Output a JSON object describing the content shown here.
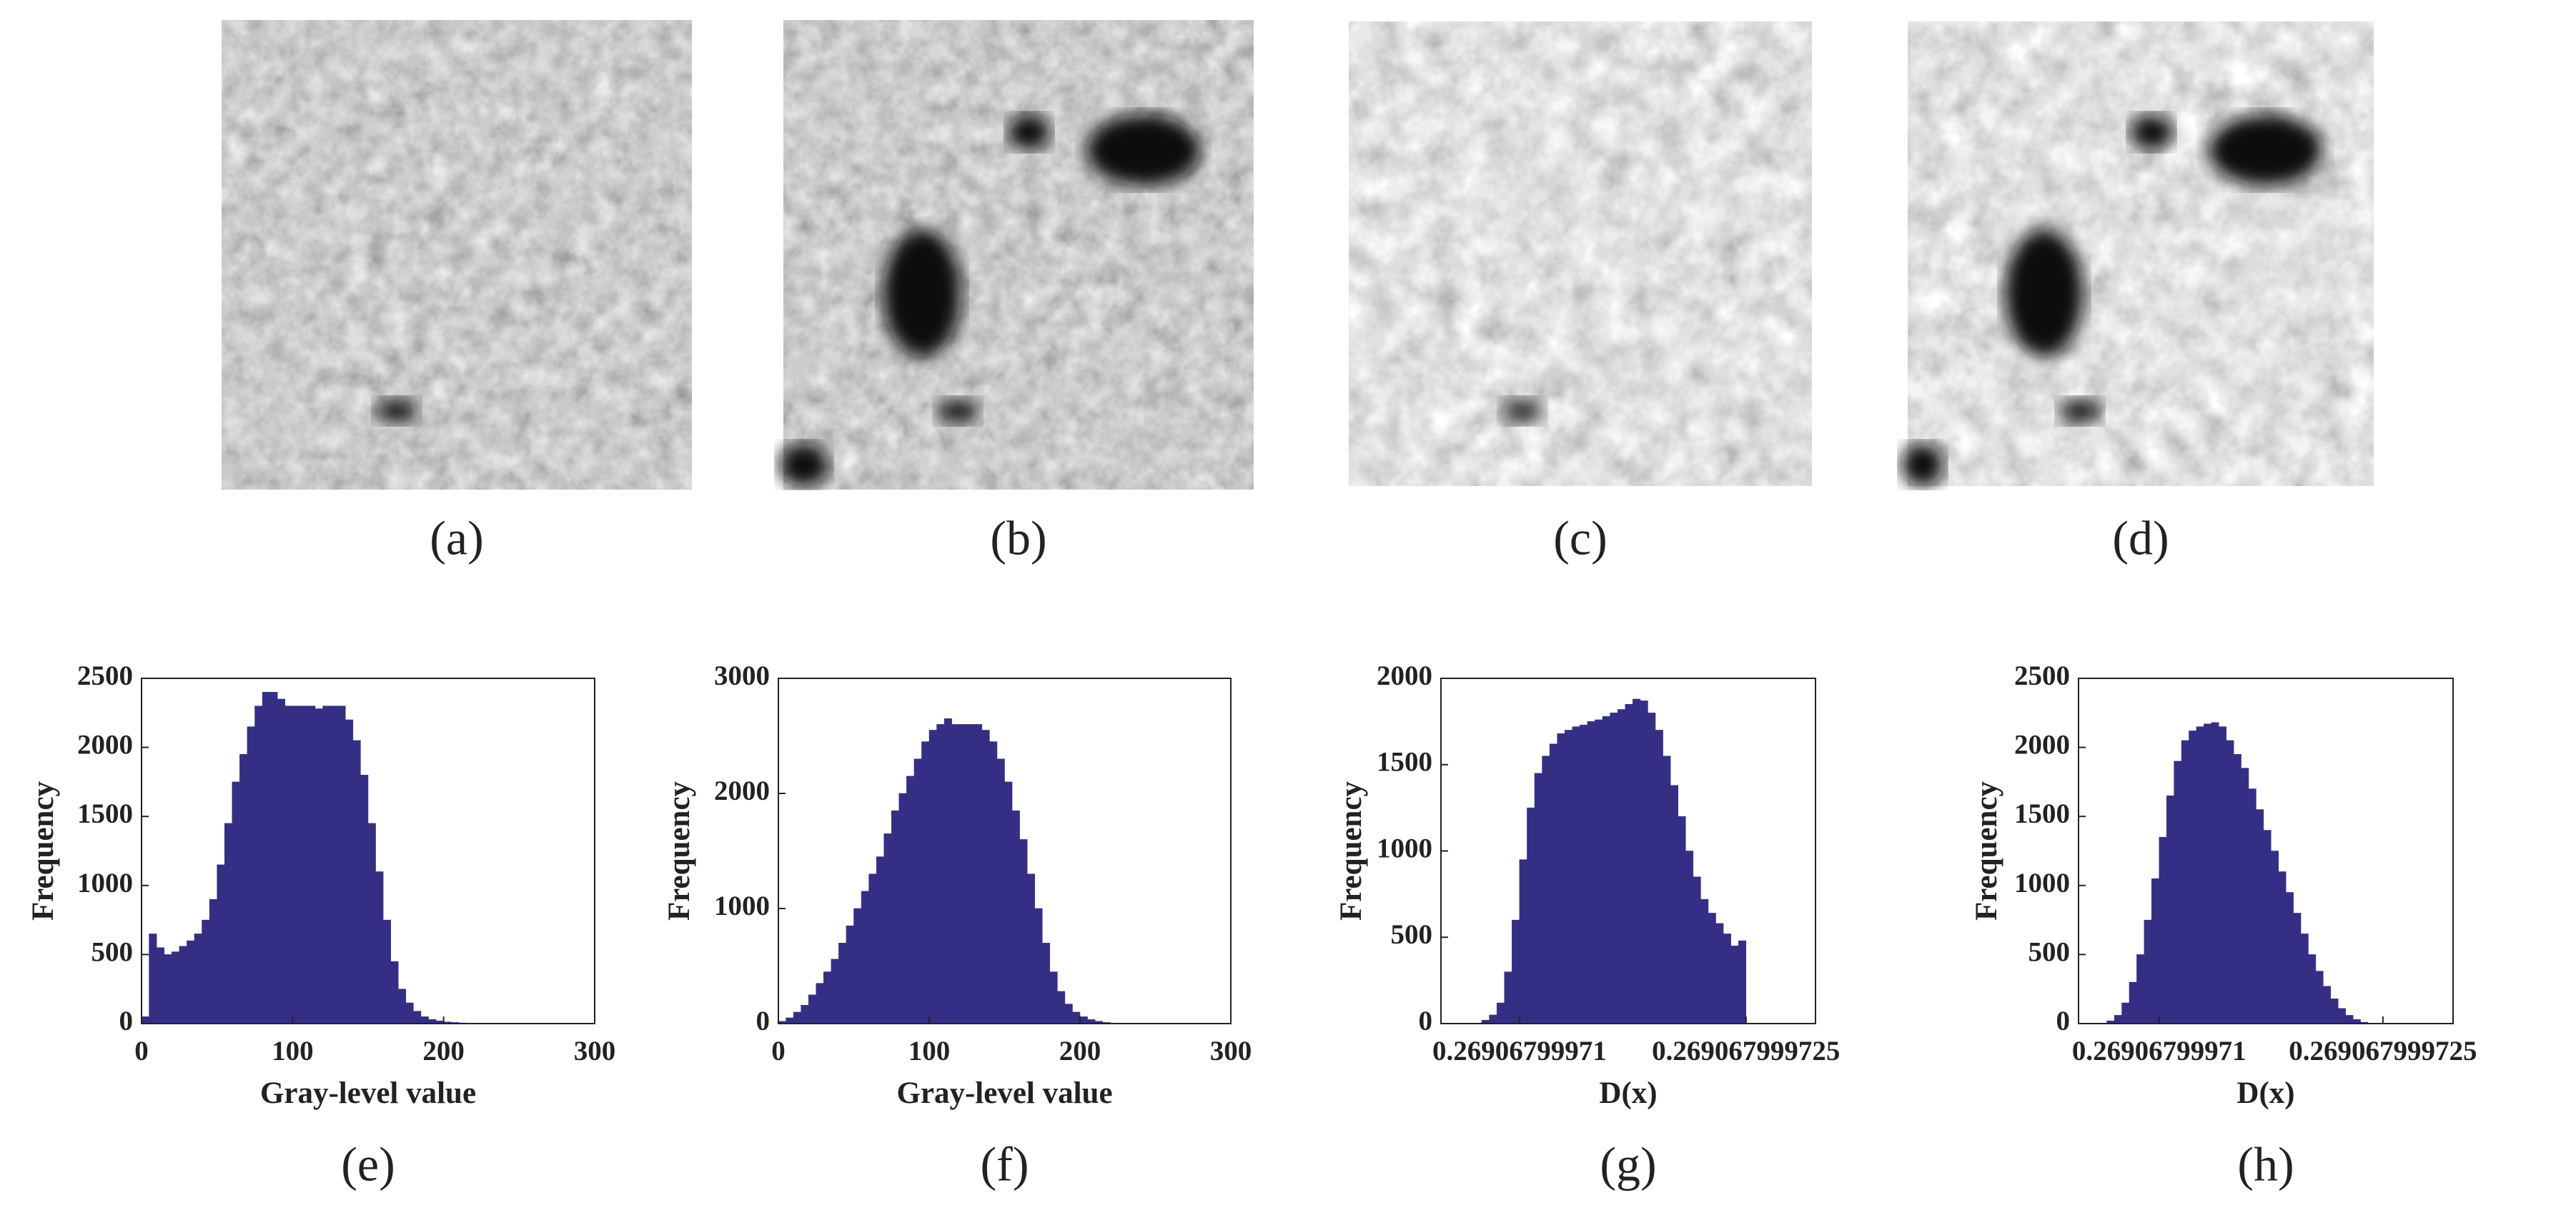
{
  "images": [
    {
      "caption": "(a)"
    },
    {
      "caption": "(b)"
    },
    {
      "caption": "(c)"
    },
    {
      "caption": "(d)"
    }
  ],
  "chart_data": [
    {
      "type": "histogram",
      "caption": "(e)",
      "xlabel": "Gray-level value",
      "ylabel": "Frequency",
      "color": "#342f85",
      "bins": [
        0,
        5,
        10,
        15,
        20,
        25,
        30,
        35,
        40,
        45,
        50,
        55,
        60,
        65,
        70,
        75,
        80,
        85,
        90,
        95,
        100,
        105,
        110,
        115,
        120,
        125,
        130,
        135,
        140,
        145,
        150,
        155,
        160,
        165,
        170,
        175,
        180,
        185,
        190,
        195,
        200,
        205,
        210,
        215,
        220,
        225,
        230,
        235,
        240,
        245,
        250,
        255
      ],
      "values": [
        50,
        650,
        550,
        500,
        520,
        560,
        600,
        650,
        750,
        900,
        1150,
        1450,
        1750,
        1950,
        2150,
        2300,
        2400,
        2400,
        2350,
        2300,
        2300,
        2300,
        2300,
        2280,
        2300,
        2300,
        2300,
        2200,
        2050,
        1800,
        1450,
        1100,
        750,
        450,
        250,
        150,
        90,
        50,
        30,
        20,
        12,
        8,
        5,
        3,
        2,
        1,
        1,
        0,
        0,
        0,
        0
      ],
      "xlim": [
        0,
        300
      ],
      "xticks": [
        0,
        100,
        200,
        300
      ],
      "ylim": [
        0,
        2500
      ],
      "yticks": [
        0,
        500,
        1000,
        1500,
        2000,
        2500
      ]
    },
    {
      "type": "histogram",
      "caption": "(f)",
      "xlabel": "Gray-level value",
      "ylabel": "Frequency",
      "color": "#342f85",
      "bins": [
        0,
        5,
        10,
        15,
        20,
        25,
        30,
        35,
        40,
        45,
        50,
        55,
        60,
        65,
        70,
        75,
        80,
        85,
        90,
        95,
        100,
        105,
        110,
        115,
        120,
        125,
        130,
        135,
        140,
        145,
        150,
        155,
        160,
        165,
        170,
        175,
        180,
        185,
        190,
        195,
        200,
        205,
        210,
        215,
        220,
        225,
        230,
        235,
        240,
        245,
        250,
        255
      ],
      "values": [
        20,
        50,
        100,
        160,
        250,
        350,
        450,
        560,
        700,
        850,
        1000,
        1150,
        1300,
        1450,
        1650,
        1850,
        2000,
        2150,
        2300,
        2450,
        2550,
        2600,
        2650,
        2600,
        2600,
        2600,
        2600,
        2550,
        2450,
        2300,
        2100,
        1850,
        1600,
        1300,
        1000,
        700,
        450,
        280,
        170,
        100,
        60,
        35,
        20,
        10,
        5,
        3,
        1,
        0,
        0,
        0,
        0
      ],
      "xlim": [
        0,
        300
      ],
      "xticks": [
        0,
        100,
        200,
        300
      ],
      "ylim": [
        0,
        3000
      ],
      "yticks": [
        0,
        1000,
        2000,
        3000
      ]
    },
    {
      "type": "histogram",
      "caption": "(g)",
      "xlabel": "D(x)",
      "ylabel": "Frequency",
      "color": "#342f85",
      "bins": [
        0.2690679997075,
        0.269067999708,
        0.2690679997085,
        0.269067999709,
        0.2690679997095,
        0.26906799971,
        0.2690679997105,
        0.269067999711,
        0.2690679997115,
        0.269067999712,
        0.2690679997125,
        0.269067999713,
        0.2690679997135,
        0.269067999714,
        0.2690679997145,
        0.269067999715,
        0.2690679997155,
        0.269067999716,
        0.2690679997165,
        0.269067999717,
        0.2690679997175,
        0.269067999718,
        0.2690679997185,
        0.269067999719,
        0.2690679997195,
        0.26906799972,
        0.2690679997205,
        0.269067999721,
        0.2690679997215,
        0.269067999722,
        0.2690679997225,
        0.269067999723,
        0.2690679997235,
        0.269067999724,
        0.2690679997245,
        0.269067999725
      ],
      "values": [
        20,
        50,
        120,
        300,
        600,
        950,
        1250,
        1450,
        1550,
        1620,
        1680,
        1700,
        1720,
        1730,
        1750,
        1760,
        1780,
        1800,
        1820,
        1850,
        1880,
        1870,
        1800,
        1700,
        1550,
        1380,
        1200,
        1000,
        850,
        720,
        640,
        580,
        520,
        450,
        480
      ],
      "xlim": [
        0.2690679997048,
        0.2690679997296
      ],
      "xticks": [
        0.26906799971,
        0.269067999725
      ],
      "ylim": [
        0,
        2000
      ],
      "yticks": [
        0,
        500,
        1000,
        1500,
        2000
      ]
    },
    {
      "type": "histogram",
      "caption": "(h)",
      "xlabel": "D(x)",
      "ylabel": "Frequency",
      "color": "#342f85",
      "bins": [
        0.2690679997065,
        0.269067999707,
        0.2690679997075,
        0.269067999708,
        0.2690679997085,
        0.269067999709,
        0.2690679997095,
        0.26906799971,
        0.2690679997105,
        0.269067999711,
        0.2690679997115,
        0.269067999712,
        0.2690679997125,
        0.269067999713,
        0.2690679997135,
        0.269067999714,
        0.2690679997145,
        0.269067999715,
        0.2690679997155,
        0.269067999716,
        0.2690679997165,
        0.269067999717,
        0.2690679997175,
        0.269067999718,
        0.2690679997185,
        0.269067999719,
        0.2690679997195,
        0.26906799972,
        0.2690679997205,
        0.269067999721,
        0.2690679997215,
        0.269067999722,
        0.2690679997225,
        0.269067999723,
        0.2690679997235,
        0.269067999724
      ],
      "values": [
        20,
        60,
        150,
        300,
        500,
        750,
        1050,
        1350,
        1650,
        1900,
        2050,
        2120,
        2150,
        2170,
        2180,
        2150,
        2050,
        1950,
        1850,
        1700,
        1550,
        1400,
        1250,
        1100,
        950,
        800,
        650,
        500,
        380,
        270,
        180,
        110,
        60,
        30,
        10
      ],
      "xlim": [
        0.2690679997046,
        0.2690679997297
      ],
      "xticks": [
        0.26906799971,
        0.269067999725
      ],
      "ylim": [
        0,
        2500
      ],
      "yticks": [
        0,
        500,
        1000,
        1500,
        2000,
        2500
      ]
    }
  ]
}
